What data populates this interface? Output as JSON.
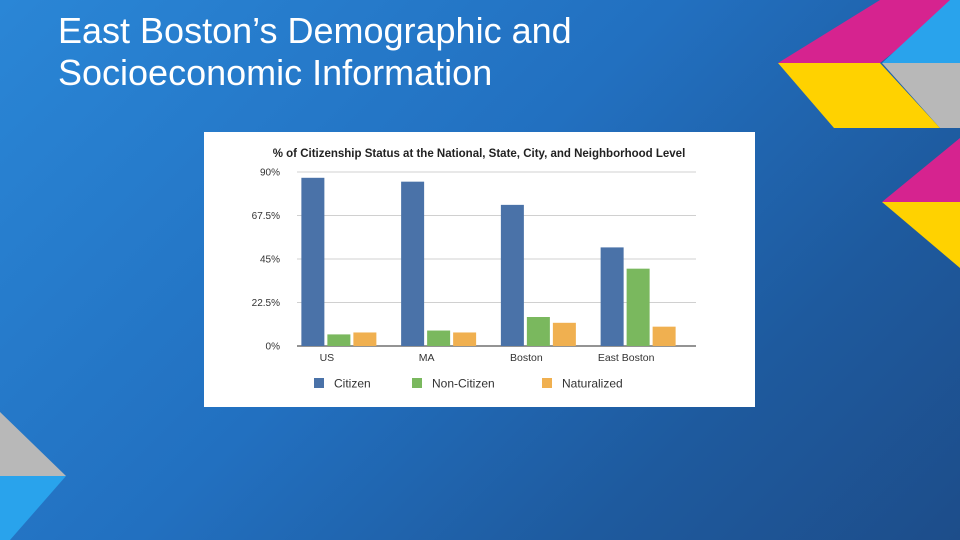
{
  "slide": {
    "title_line1": "East Boston’s Demographic and",
    "title_line2": "Socioeconomic Information"
  },
  "colors": {
    "background_top": "#2a86d6",
    "background_bottom": "#1d4d8a",
    "magenta": "#d6238f",
    "yellow": "#ffd200",
    "gray": "#b8b8b8",
    "light_blue": "#29a3ec"
  },
  "chart_data": {
    "type": "bar",
    "title": "% of Citizenship Status at the National, State, City, and Neighborhood Level",
    "categories": [
      "US",
      "MA",
      "Boston",
      "East Boston"
    ],
    "series": [
      {
        "name": "Citizen",
        "color": "#4a72a8",
        "values": [
          87,
          85,
          73,
          51
        ]
      },
      {
        "name": "Non-Citizen",
        "color": "#7ab85e",
        "values": [
          6,
          8,
          15,
          40
        ]
      },
      {
        "name": "Naturalized",
        "color": "#f0b050",
        "values": [
          7,
          7,
          12,
          10
        ]
      }
    ],
    "yticks": [
      "90%",
      "67.5%",
      "45%",
      "22.5%",
      "0%"
    ],
    "ytick_values": [
      90,
      67.5,
      45,
      22.5,
      0
    ],
    "ylim": [
      0,
      90
    ],
    "grid": true,
    "legend_position": "bottom"
  }
}
